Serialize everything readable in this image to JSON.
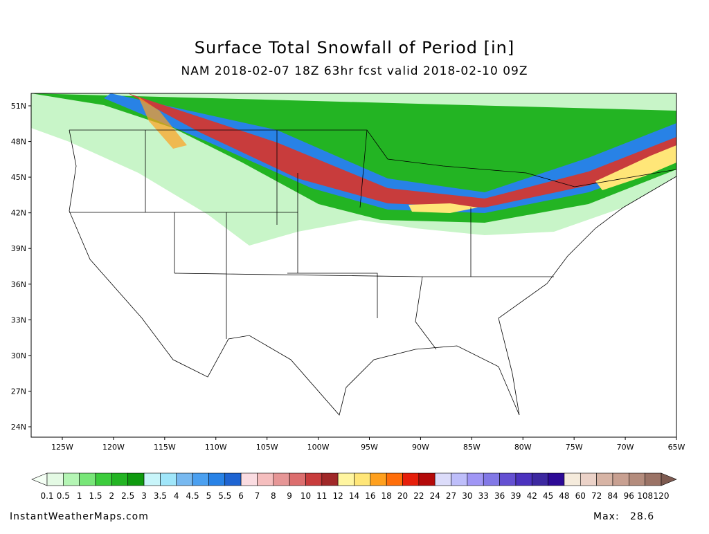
{
  "header": {
    "title": "Surface Total Snowfall of Period [in]",
    "subtitle": "NAM 2018-02-07 18Z 63hr fcst valid 2018-02-10 09Z"
  },
  "axes": {
    "lat_labels": [
      "51N",
      "48N",
      "45N",
      "42N",
      "39N",
      "36N",
      "33N",
      "30N",
      "27N",
      "24N"
    ],
    "lon_labels": [
      "125W",
      "120W",
      "115W",
      "110W",
      "105W",
      "100W",
      "95W",
      "90W",
      "85W",
      "80W",
      "75W",
      "70W",
      "65W"
    ]
  },
  "colorbar": {
    "labels": [
      "0.1",
      "0.5",
      "1",
      "1.5",
      "2",
      "2.5",
      "3",
      "3.5",
      "4",
      "4.5",
      "5",
      "5.5",
      "6",
      "7",
      "8",
      "9",
      "10",
      "11",
      "12",
      "14",
      "16",
      "18",
      "20",
      "22",
      "24",
      "27",
      "30",
      "33",
      "36",
      "39",
      "42",
      "45",
      "48",
      "60",
      "72",
      "84",
      "96",
      "108",
      "120"
    ],
    "colors": [
      "#e4fae4",
      "#b4f5b4",
      "#78e678",
      "#3ccc3c",
      "#23b423",
      "#0f9a0f",
      "#c8f5fa",
      "#a0e6fa",
      "#78b9f0",
      "#4ba0f0",
      "#2882e6",
      "#1e64d2",
      "#fadce1",
      "#f5bebe",
      "#e69696",
      "#dc6e6e",
      "#c83c3c",
      "#a02828",
      "#fff5a0",
      "#ffe678",
      "#ffa01e",
      "#ff6e0a",
      "#e61e0a",
      "#b40a0a",
      "#dcdcfa",
      "#bebefa",
      "#a096f5",
      "#8278e6",
      "#6450d2",
      "#4b32be",
      "#3c28a0",
      "#2d0a96",
      "#f5ebdc",
      "#ebd2c8",
      "#d7b4a5",
      "#c8a091",
      "#b48c7d",
      "#9b7366"
    ],
    "low_color": "#f5fff5",
    "high_color": "#7d5a50"
  },
  "footer": {
    "source": "InstantWeatherMaps.com",
    "max_label": "Max:",
    "max_value": "28.6"
  }
}
